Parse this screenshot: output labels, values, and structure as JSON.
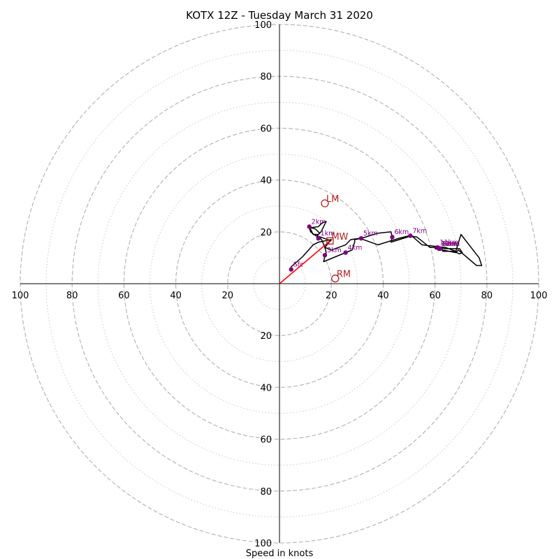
{
  "chart_data": {
    "type": "hodograph",
    "title": "KOTX 12Z - Tuesday March 31 2020",
    "xlabel": "Speed in knots",
    "units": "knots",
    "rings": {
      "major": [
        20,
        40,
        60,
        80,
        100
      ],
      "minor": [
        10,
        30,
        50,
        70,
        90
      ]
    },
    "x_ticks": [
      {
        "v": -100,
        "label": "100"
      },
      {
        "v": -80,
        "label": "80"
      },
      {
        "v": -60,
        "label": "60"
      },
      {
        "v": -40,
        "label": "40"
      },
      {
        "v": -20,
        "label": "20"
      },
      {
        "v": 20,
        "label": "20"
      },
      {
        "v": 40,
        "label": "40"
      },
      {
        "v": 60,
        "label": "60"
      },
      {
        "v": 80,
        "label": "80"
      },
      {
        "v": 100,
        "label": "100"
      }
    ],
    "y_ticks": [
      {
        "v": 100,
        "label": "100"
      },
      {
        "v": 80,
        "label": "80"
      },
      {
        "v": 60,
        "label": "60"
      },
      {
        "v": 40,
        "label": "40"
      },
      {
        "v": 20,
        "label": "20"
      },
      {
        "v": -20,
        "label": "20"
      },
      {
        "v": -40,
        "label": "40"
      },
      {
        "v": -60,
        "label": "60"
      },
      {
        "v": -80,
        "label": "80"
      },
      {
        "v": -100,
        "label": "100"
      }
    ],
    "trace": [
      [
        4.5,
        5.5
      ],
      [
        4.5,
        6.5
      ],
      [
        9,
        10.5
      ],
      [
        13,
        15
      ],
      [
        15,
        16
      ],
      [
        20,
        17
      ],
      [
        17.5,
        14
      ],
      [
        18,
        12
      ],
      [
        17.5,
        10.5
      ],
      [
        17,
        8.5
      ],
      [
        25.5,
        12
      ],
      [
        28,
        13
      ],
      [
        29,
        16
      ],
      [
        29,
        17
      ],
      [
        31.5,
        17.5
      ],
      [
        38,
        19.5
      ],
      [
        43,
        20
      ],
      [
        43.5,
        18
      ],
      [
        43,
        16
      ],
      [
        51,
        18.5
      ],
      [
        55,
        15
      ],
      [
        64,
        14
      ],
      [
        68,
        12.5
      ],
      [
        70,
        19
      ],
      [
        77,
        10
      ],
      [
        78,
        7
      ],
      [
        76,
        7
      ],
      [
        69,
        13
      ],
      [
        68,
        12
      ],
      [
        63,
        13
      ],
      [
        60,
        13.5
      ],
      [
        61,
        14
      ],
      [
        62.5,
        14
      ],
      [
        63,
        12.5
      ],
      [
        67,
        12.5
      ],
      [
        69.5,
        11.5
      ],
      [
        70.5,
        12
      ],
      [
        69.5,
        13.5
      ],
      [
        66,
        13.5
      ],
      [
        64,
        13.5
      ],
      [
        61,
        14
      ],
      [
        58,
        14
      ],
      [
        53,
        18
      ],
      [
        50,
        18.5
      ],
      [
        46,
        17.5
      ],
      [
        38,
        15
      ],
      [
        31,
        17.5
      ],
      [
        27.5,
        17
      ],
      [
        25.5,
        15
      ],
      [
        20,
        13
      ],
      [
        17.5,
        14
      ],
      [
        16.5,
        16.5
      ],
      [
        15.5,
        18
      ],
      [
        14,
        18.5
      ],
      [
        12,
        20
      ],
      [
        11.5,
        21.5
      ],
      [
        15,
        22
      ],
      [
        16.5,
        23.5
      ],
      [
        18,
        24
      ],
      [
        16,
        20
      ],
      [
        15,
        19
      ],
      [
        13,
        19
      ],
      [
        11.5,
        22
      ],
      [
        14,
        21
      ],
      [
        15.5,
        19.5
      ],
      [
        14.5,
        18.5
      ],
      [
        20,
        16.5
      ]
    ],
    "heights": [
      {
        "label": "Sfc",
        "u": 4.5,
        "v": 5.5
      },
      {
        "label": "1km",
        "u": 15,
        "v": 17.5
      },
      {
        "label": "2km",
        "u": 11.5,
        "v": 22
      },
      {
        "label": "3km",
        "u": 17.5,
        "v": 11
      },
      {
        "label": "4km",
        "u": 25.5,
        "v": 12
      },
      {
        "label": "5km",
        "u": 31.5,
        "v": 17.5
      },
      {
        "label": "6km",
        "u": 43.5,
        "v": 18
      },
      {
        "label": "7km",
        "u": 50.5,
        "v": 18.5
      },
      {
        "label": "11km",
        "u": 61,
        "v": 14
      },
      {
        "label": "10km",
        "u": 61.5,
        "v": 13.5
      },
      {
        "label": "9km",
        "u": 61.5,
        "v": 13.5
      },
      {
        "label": "8km",
        "u": 62,
        "v": 13.5
      }
    ],
    "markers": [
      {
        "label": "LM",
        "u": 17.5,
        "v": 31,
        "shape": "circle"
      },
      {
        "label": "RM",
        "u": 21.5,
        "v": 2,
        "shape": "circle"
      },
      {
        "label": "MW",
        "u": 19.5,
        "v": 16.5,
        "shape": "square"
      }
    ],
    "shear_vector": {
      "from": [
        0,
        0
      ],
      "to": [
        19.5,
        16.5
      ]
    },
    "colors": {
      "trace": "#000000",
      "height_points": "#800080",
      "markers": "#b22222",
      "shear_vector": "#ff0000",
      "major_rings": "#b0b0b0",
      "minor_rings": "#c8c8c8"
    }
  }
}
